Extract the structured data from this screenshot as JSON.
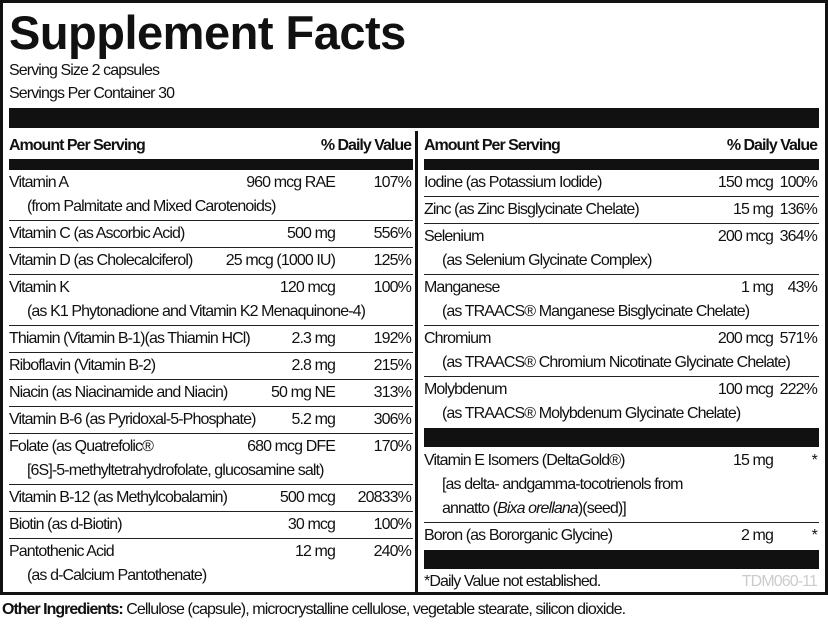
{
  "title": "Supplement Facts",
  "serving_size": "Serving Size 2 capsules",
  "servings_per_container": "Servings Per Container 30",
  "header": {
    "amount": "Amount Per Serving",
    "dv": "% Daily Value"
  },
  "left_rows": [
    {
      "name": "Vitamin A",
      "sub": "(from Palmitate and Mixed Carotenoids)",
      "amount": "960 mcg RAE",
      "dv": "107%"
    },
    {
      "name": "Vitamin C (as Ascorbic Acid)",
      "amount": "500 mg",
      "dv": "556%"
    },
    {
      "name": "Vitamin D (as Cholecalciferol)",
      "amount": "25 mcg (1000 IU)",
      "dv": "125%"
    },
    {
      "name": "Vitamin K",
      "sub": "(as K1 Phytonadione and Vitamin K2 Menaquinone-4)",
      "amount": "120 mcg",
      "dv": "100%"
    },
    {
      "name": "Thiamin (Vitamin B-1)(as Thiamin HCl)",
      "amount": "2.3 mg",
      "dv": "192%"
    },
    {
      "name": "Riboflavin (Vitamin B-2)",
      "amount": "2.8 mg",
      "dv": "215%"
    },
    {
      "name": "Niacin (as Niacinamide and Niacin)",
      "amount": "50 mg NE",
      "dv": "313%"
    },
    {
      "name": "Vitamin B-6 (as Pyridoxal-5-Phosphate)",
      "amount": "5.2 mg",
      "dv": "306%"
    },
    {
      "name": "Folate (as Quatrefolic®",
      "sub": "[6S]-5-methyltetrahydrofolate, glucosamine salt)",
      "amount": "680 mcg DFE",
      "dv": "170%"
    },
    {
      "name": "Vitamin B-12 (as Methylcobalamin)",
      "amount": "500 mcg",
      "dv": "20833%"
    },
    {
      "name": "Biotin (as d-Biotin)",
      "amount": "30 mcg",
      "dv": "100%"
    },
    {
      "name": "Pantothenic Acid",
      "sub": "(as d-Calcium Pantothenate)",
      "amount": "12 mg",
      "dv": "240%"
    }
  ],
  "right_rows": [
    {
      "name": "Iodine (as Potassium Iodide)",
      "amount": "150 mcg",
      "dv": "100%"
    },
    {
      "name": "Zinc (as Zinc Bisglycinate Chelate)",
      "amount": "15 mg",
      "dv": "136%"
    },
    {
      "name": "Selenium",
      "sub": "(as Selenium Glycinate Complex)",
      "amount": "200 mcg",
      "dv": "364%"
    },
    {
      "name": "Manganese",
      "sub": "(as TRAACS® Manganese Bisglycinate Chelate)",
      "amount": "1 mg",
      "dv": "43%"
    },
    {
      "name": "Chromium",
      "sub": "(as TRAACS® Chromium Nicotinate Glycinate Chelate)",
      "amount": "200 mcg",
      "dv": "571%"
    },
    {
      "name": "Molybdenum",
      "sub": "(as TRAACS® Molybdenum Glycinate Chelate)",
      "amount": "100 mcg",
      "dv": "222%"
    }
  ],
  "right_rows2": [
    {
      "name": "Vitamin E Isomers (DeltaGold®)",
      "sub": "[as delta- andgamma-tocotrienols from",
      "sub2_pre": "annatto (",
      "sub2_italic": "Bixa orellana",
      "sub2_post": ")(seed)]",
      "amount": "15 mg",
      "dv": "*"
    },
    {
      "name": "Boron (as Bororganic Glycine)",
      "amount": "2 mg",
      "dv": "*"
    }
  ],
  "footnote": "*Daily Value not established.",
  "code": "TDM060-11",
  "other_ingredients": {
    "label": "Other Ingredients:",
    "text": " Cellulose (capsule), microcrystalline cellulose, vegetable stearate, silicon dioxide."
  }
}
